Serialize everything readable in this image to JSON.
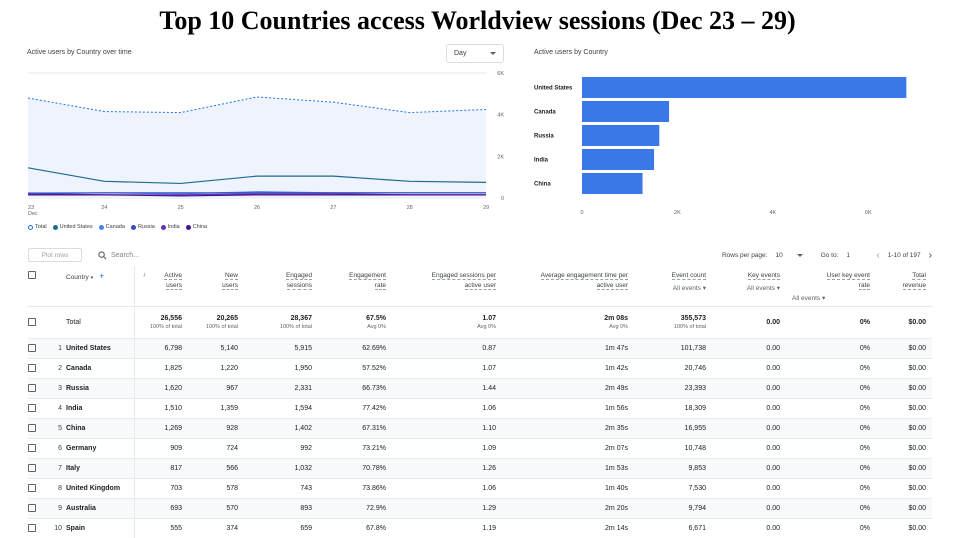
{
  "page_title": "Top 10 Countries access Worldview sessions (Dec 23 – 29)",
  "line_card": {
    "title": "Active users by Country over time",
    "granularity": "Day"
  },
  "bar_card": {
    "title": "Active users by Country"
  },
  "legend": [
    {
      "label": "Total",
      "color": "#ffffff",
      "border": "#1a73e8"
    },
    {
      "label": "United States",
      "color": "#1e6b8f"
    },
    {
      "label": "Canada",
      "color": "#4285f4"
    },
    {
      "label": "Russia",
      "color": "#3b4cc0"
    },
    {
      "label": "India",
      "color": "#5e35b1"
    },
    {
      "label": "China",
      "color": "#4a148c"
    }
  ],
  "chart_data": [
    {
      "type": "line",
      "x": [
        "23\nDec",
        "24",
        "25",
        "26",
        "27",
        "28",
        "29"
      ],
      "ylim": [
        0,
        6000
      ],
      "yticks": [
        "0",
        "2K",
        "4K",
        "6K"
      ],
      "series": [
        {
          "name": "Total",
          "values": [
            4800,
            4150,
            4100,
            4850,
            4600,
            4100,
            4250
          ],
          "color": "#1a73e8",
          "dashed": true
        },
        {
          "name": "United States",
          "values": [
            1450,
            800,
            700,
            1050,
            1050,
            800,
            750
          ],
          "color": "#1e6b8f"
        },
        {
          "name": "Canada",
          "values": [
            250,
            250,
            200,
            300,
            250,
            250,
            250
          ],
          "color": "#4285f4"
        },
        {
          "name": "Russia",
          "values": [
            200,
            250,
            250,
            250,
            250,
            250,
            250
          ],
          "color": "#3b4cc0"
        },
        {
          "name": "India",
          "values": [
            200,
            150,
            150,
            200,
            200,
            150,
            150
          ],
          "color": "#5e35b1"
        },
        {
          "name": "China",
          "values": [
            150,
            150,
            100,
            150,
            150,
            150,
            150
          ],
          "color": "#4a148c"
        }
      ]
    },
    {
      "type": "bar",
      "orientation": "horizontal",
      "categories": [
        "United States",
        "Canada",
        "Russia",
        "India",
        "China"
      ],
      "values": [
        6798,
        1825,
        1620,
        1510,
        1269
      ],
      "xlim": [
        0,
        7000
      ],
      "xticks": [
        "0",
        "2K",
        "4K",
        "6K"
      ],
      "color": "#3b78e7"
    }
  ],
  "toolbar": {
    "plot_rows": "Plot rows",
    "search_placeholder": "Search...",
    "rows_per_page_label": "Rows per page:",
    "rows_per_page": "10",
    "goto_label": "Go to:",
    "goto_value": "1",
    "range": "1-10 of 197"
  },
  "table": {
    "headers": {
      "country": "Country",
      "active_users": [
        "Active",
        "users"
      ],
      "new_users": [
        "New",
        "users"
      ],
      "engaged_sessions": [
        "Engaged",
        "sessions"
      ],
      "engagement_rate": [
        "Engagement",
        "rate"
      ],
      "engaged_per_user": [
        "Engaged sessions per",
        "active user"
      ],
      "avg_time": [
        "Average engagement time per",
        "active user"
      ],
      "event_count": [
        "Event count",
        "All events"
      ],
      "key_events": [
        "Key events",
        "All events"
      ],
      "user_key_rate": [
        "User key event",
        "rate",
        "All events"
      ],
      "revenue": [
        "Total",
        "revenue"
      ]
    },
    "total": {
      "label": "Total",
      "active_users": "26,556",
      "active_users_sub": "100% of total",
      "new_users": "20,265",
      "new_users_sub": "100% of total",
      "engaged_sessions": "28,367",
      "engaged_sessions_sub": "100% of total",
      "engagement_rate": "67.5%",
      "engagement_rate_sub": "Avg 0%",
      "engaged_per_user": "1.07",
      "engaged_per_user_sub": "Avg 0%",
      "avg_time": "2m 08s",
      "avg_time_sub": "Avg 0%",
      "event_count": "355,573",
      "event_count_sub": "100% of total",
      "key_events": "0.00",
      "user_key_rate": "0%",
      "revenue": "$0.00"
    },
    "rows": [
      {
        "idx": "1",
        "country": "United States",
        "c1": "6,798",
        "c2": "5,140",
        "c3": "5,915",
        "c4": "62.69%",
        "c5": "0.87",
        "c6": "1m 47s",
        "c7": "101,738",
        "c8": "0.00",
        "c9": "0%",
        "c10": "$0.00"
      },
      {
        "idx": "2",
        "country": "Canada",
        "c1": "1,825",
        "c2": "1,220",
        "c3": "1,950",
        "c4": "57.52%",
        "c5": "1.07",
        "c6": "1m 42s",
        "c7": "20,746",
        "c8": "0.00",
        "c9": "0%",
        "c10": "$0.00"
      },
      {
        "idx": "3",
        "country": "Russia",
        "c1": "1,620",
        "c2": "967",
        "c3": "2,331",
        "c4": "66.73%",
        "c5": "1.44",
        "c6": "2m 49s",
        "c7": "23,393",
        "c8": "0.00",
        "c9": "0%",
        "c10": "$0.00"
      },
      {
        "idx": "4",
        "country": "India",
        "c1": "1,510",
        "c2": "1,359",
        "c3": "1,594",
        "c4": "77.42%",
        "c5": "1.06",
        "c6": "1m 56s",
        "c7": "18,309",
        "c8": "0.00",
        "c9": "0%",
        "c10": "$0.00"
      },
      {
        "idx": "5",
        "country": "China",
        "c1": "1,269",
        "c2": "928",
        "c3": "1,402",
        "c4": "67.31%",
        "c5": "1.10",
        "c6": "2m 35s",
        "c7": "16,955",
        "c8": "0.00",
        "c9": "0%",
        "c10": "$0.00"
      },
      {
        "idx": "6",
        "country": "Germany",
        "c1": "909",
        "c2": "724",
        "c3": "992",
        "c4": "73.21%",
        "c5": "1.09",
        "c6": "2m 07s",
        "c7": "10,748",
        "c8": "0.00",
        "c9": "0%",
        "c10": "$0.00"
      },
      {
        "idx": "7",
        "country": "Italy",
        "c1": "817",
        "c2": "566",
        "c3": "1,032",
        "c4": "70.78%",
        "c5": "1.26",
        "c6": "1m 53s",
        "c7": "9,853",
        "c8": "0.00",
        "c9": "0%",
        "c10": "$0.00"
      },
      {
        "idx": "8",
        "country": "United Kingdom",
        "c1": "703",
        "c2": "578",
        "c3": "743",
        "c4": "73.86%",
        "c5": "1.06",
        "c6": "1m 40s",
        "c7": "7,530",
        "c8": "0.00",
        "c9": "0%",
        "c10": "$0.00"
      },
      {
        "idx": "9",
        "country": "Australia",
        "c1": "693",
        "c2": "570",
        "c3": "893",
        "c4": "72.9%",
        "c5": "1.29",
        "c6": "2m 20s",
        "c7": "9,794",
        "c8": "0.00",
        "c9": "0%",
        "c10": "$0.00"
      },
      {
        "idx": "10",
        "country": "Spain",
        "c1": "555",
        "c2": "374",
        "c3": "659",
        "c4": "67.8%",
        "c5": "1.19",
        "c6": "2m 14s",
        "c7": "6,671",
        "c8": "0.00",
        "c9": "0%",
        "c10": "$0.00"
      }
    ]
  }
}
